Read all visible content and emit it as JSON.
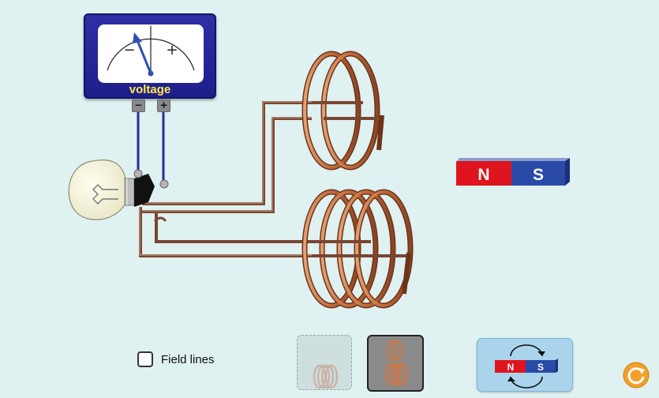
{
  "voltmeter": {
    "label": "voltage",
    "minus": "−",
    "plus": "+",
    "neg_terminal": "−",
    "pos_terminal": "+"
  },
  "magnet": {
    "north": "N",
    "south": "S"
  },
  "controls": {
    "field_lines_label": "Field lines",
    "field_lines_checked": false,
    "coil_options": [
      "small-coil",
      "both-coils"
    ],
    "selected_coil_option": "both-coils",
    "flip_magnet": {
      "north": "N",
      "south": "S"
    }
  },
  "colors": {
    "background": "#dff1f0",
    "voltmeter_body": "#2a2a9a",
    "voltmeter_label": "#ffe94a",
    "wire": "#7a4632",
    "copper": "#c8784a",
    "magnet_north": "#e0141e",
    "magnet_south": "#2a4aa8",
    "reset": "#f2a02a"
  },
  "icons": {
    "reset": "reset-icon",
    "bulb": "light-bulb-icon",
    "flip": "flip-arrows-icon"
  }
}
